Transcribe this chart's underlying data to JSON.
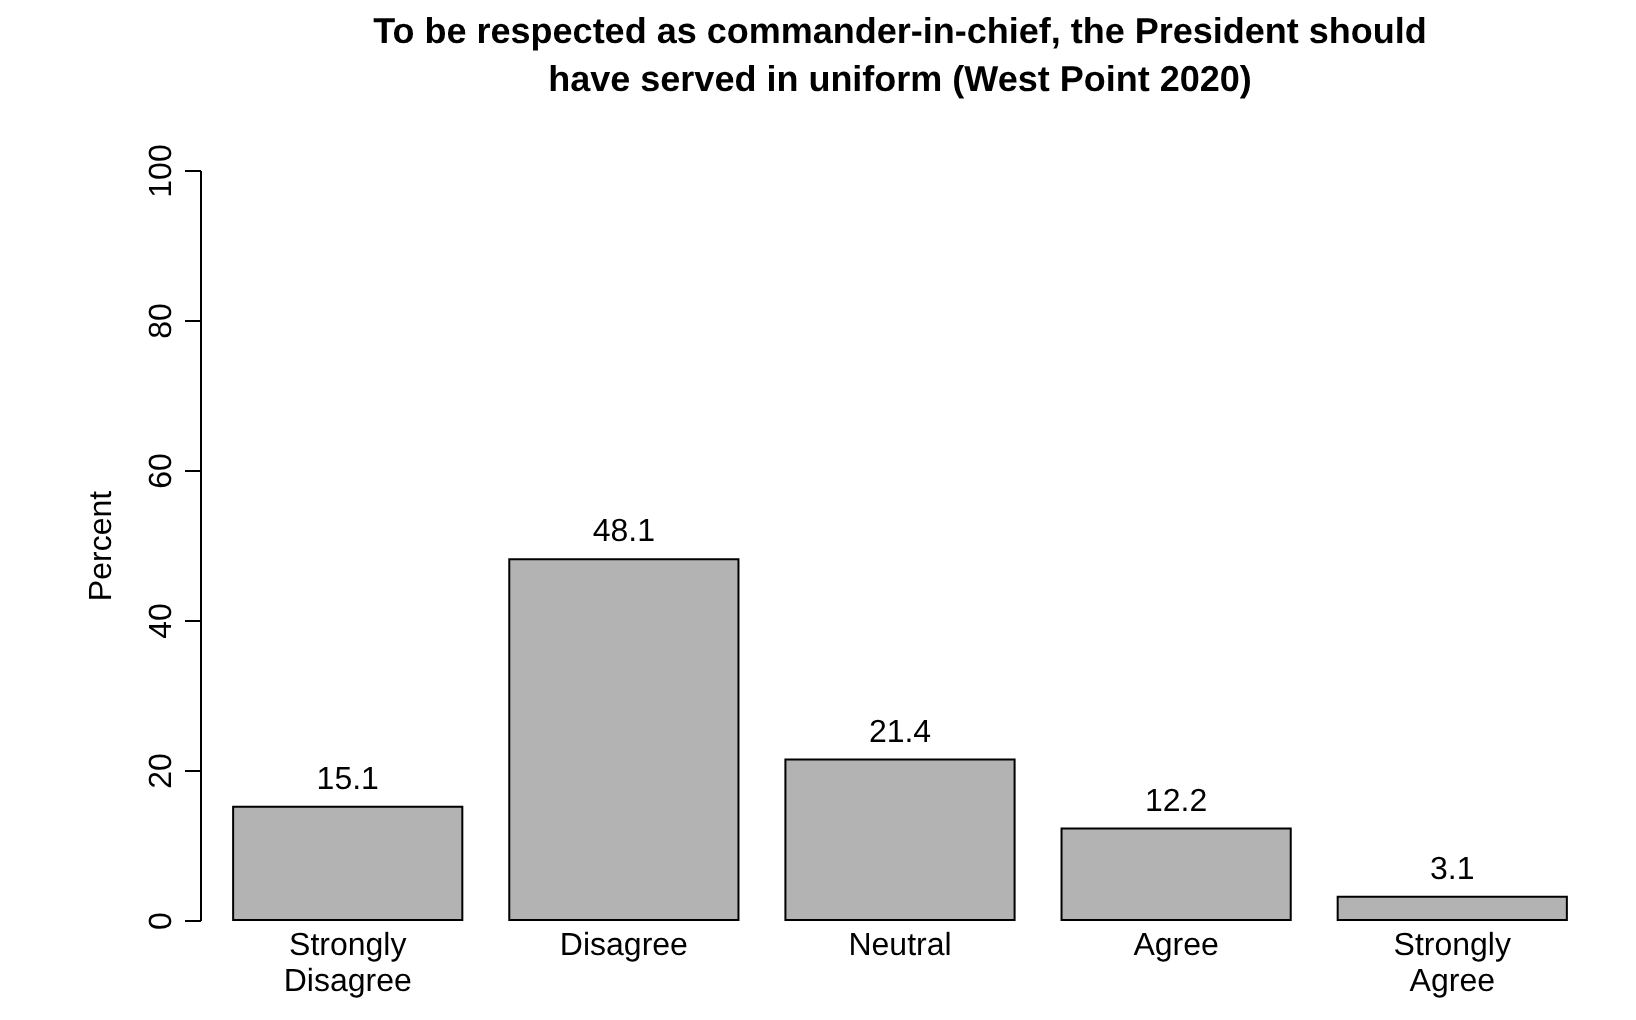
{
  "chart_data": {
    "type": "bar",
    "title": "To be respected as commander-in-chief, the President should have served in uniform (West Point 2020)",
    "ylabel": "Percent",
    "categories": [
      "Strongly Disagree",
      "Disagree",
      "Neutral",
      "Agree",
      "Strongly Agree"
    ],
    "values": [
      15.1,
      48.1,
      21.4,
      12.2,
      3.1
    ],
    "color": "#b3b3b3",
    "ylim": [
      0,
      100
    ],
    "yticks": [
      0,
      20,
      40,
      60,
      80,
      100
    ],
    "grid": false,
    "data_labels": true
  }
}
